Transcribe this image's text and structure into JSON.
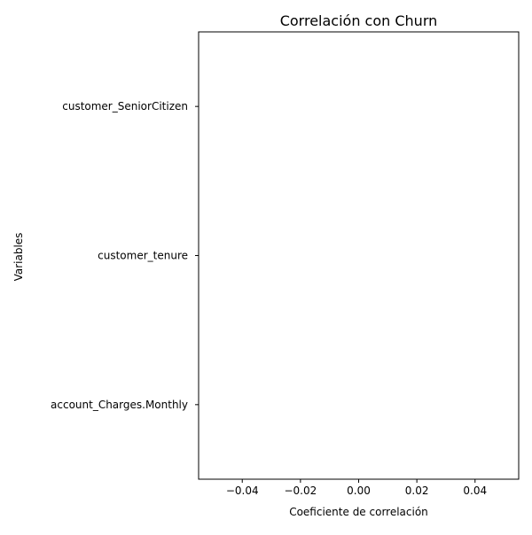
{
  "chart_data": {
    "type": "bar",
    "orientation": "horizontal",
    "title": "Correlación con Churn",
    "xlabel": "Coeficiente de correlación",
    "ylabel": "Variables",
    "categories": [
      "customer_SeniorCitizen",
      "customer_tenure",
      "account_Charges.Monthly"
    ],
    "values": [
      0,
      0,
      0
    ],
    "xlim": [
      -0.055,
      0.055
    ],
    "xticks": [
      -0.04,
      -0.02,
      0.0,
      0.02,
      0.04
    ],
    "xtick_labels": [
      "−0.04",
      "−0.02",
      "0.00",
      "0.02",
      "0.04"
    ],
    "grid": false,
    "legend": "none"
  }
}
